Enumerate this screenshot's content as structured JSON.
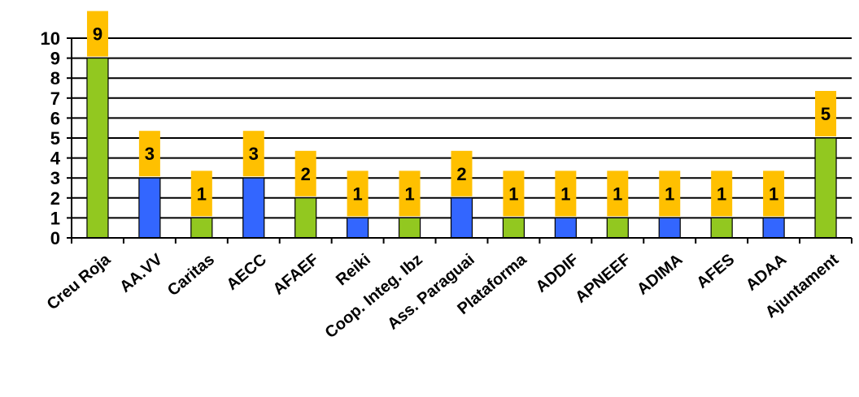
{
  "chart_data": {
    "type": "bar",
    "title": "",
    "xlabel": "",
    "ylabel": "",
    "ylim": [
      0,
      10
    ],
    "yticks": [
      0,
      1,
      2,
      3,
      4,
      5,
      6,
      7,
      8,
      9,
      10
    ],
    "grid": true,
    "legend": "none",
    "categories": [
      "Creu Roja",
      "AA.VV",
      "Caritas",
      "AECC",
      "AFAEF",
      "Reiki",
      "Coop. Integ. Ibz",
      "Ass. Paraguai",
      "Plataforma",
      "ADDIF",
      "APNEEF",
      "ADIMA",
      "AFES",
      "ADAA",
      "Ajuntament"
    ],
    "values": [
      9,
      3,
      1,
      3,
      2,
      1,
      1,
      2,
      1,
      1,
      1,
      1,
      1,
      1,
      5
    ],
    "bar_colors": [
      "#92C820",
      "#3366FF",
      "#92C820",
      "#3366FF",
      "#92C820",
      "#3366FF",
      "#92C820",
      "#3366FF",
      "#92C820",
      "#3366FF",
      "#92C820",
      "#3366FF",
      "#92C820",
      "#3366FF",
      "#92C820"
    ],
    "label_box_color": "#FFC000",
    "data_labels": [
      "9",
      "3",
      "1",
      "3",
      "2",
      "1",
      "1",
      "2",
      "1",
      "1",
      "1",
      "1",
      "1",
      "1",
      "5"
    ]
  }
}
